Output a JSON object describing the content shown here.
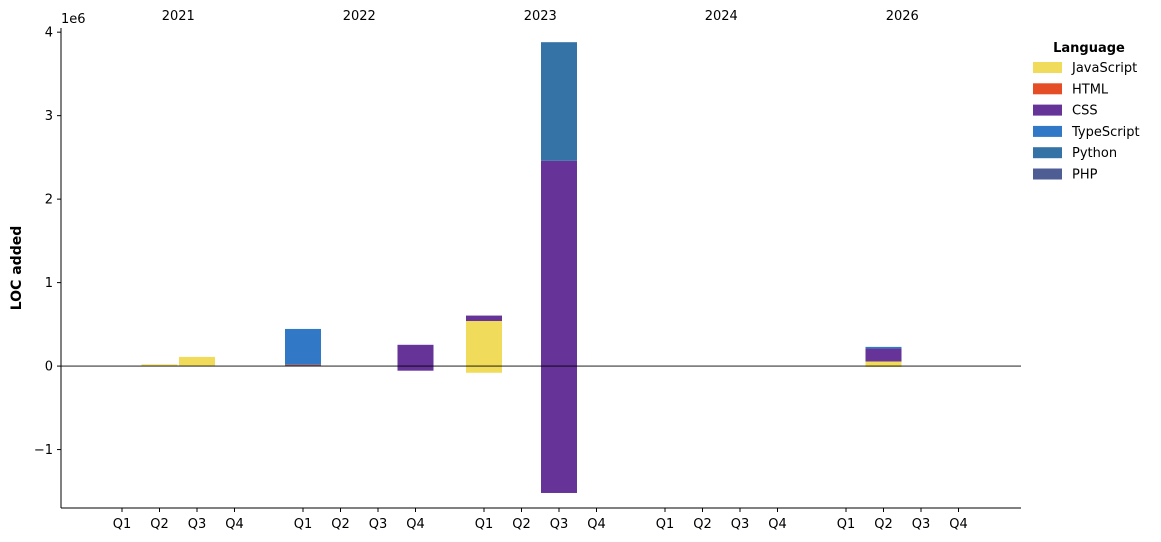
{
  "chart_data": {
    "type": "bar",
    "stacked": true,
    "ylabel": "LOC added",
    "y_scale_label": "1e6",
    "y_scale": 1000000,
    "ylim": [
      -1700000,
      4050000
    ],
    "yticks": [
      -1000000,
      0,
      1000000,
      2000000,
      3000000,
      4000000
    ],
    "ytick_labels": [
      "−1",
      "0",
      "1",
      "2",
      "3",
      "4"
    ],
    "years": [
      "2021",
      "2022",
      "2023",
      "2024",
      "2026"
    ],
    "quarters": [
      "Q1",
      "Q2",
      "Q3",
      "Q4"
    ],
    "categories": [
      "2021 Q1",
      "2021 Q2",
      "2021 Q3",
      "2021 Q4",
      "2022 Q1",
      "2022 Q2",
      "2022 Q3",
      "2022 Q4",
      "2023 Q1",
      "2023 Q2",
      "2023 Q3",
      "2023 Q4",
      "2024 Q1",
      "2024 Q2",
      "2024 Q3",
      "2024 Q4",
      "2026 Q1",
      "2026 Q2",
      "2026 Q3",
      "2026 Q4"
    ],
    "legend": {
      "title": "Language",
      "placement": "upper-right-outside"
    },
    "grid": false,
    "zero_line": true,
    "series": [
      {
        "name": "JavaScript",
        "color": "#f0dc5a",
        "values": [
          0,
          20000,
          110000,
          0,
          0,
          0,
          0,
          0,
          540000,
          0,
          0,
          0,
          0,
          0,
          0,
          0,
          0,
          55000,
          0,
          0
        ],
        "negatives": [
          0,
          0,
          0,
          0,
          0,
          0,
          0,
          0,
          -80000,
          0,
          0,
          0,
          0,
          0,
          0,
          0,
          0,
          -10000,
          0,
          0
        ]
      },
      {
        "name": "HTML",
        "color": "#e44d26",
        "values": [
          0,
          0,
          0,
          0,
          15000,
          0,
          0,
          0,
          0,
          0,
          0,
          0,
          0,
          0,
          0,
          0,
          0,
          0,
          0,
          0
        ],
        "negatives": [
          0,
          0,
          0,
          0,
          0,
          0,
          0,
          0,
          0,
          0,
          0,
          0,
          0,
          0,
          0,
          0,
          0,
          0,
          0,
          0
        ]
      },
      {
        "name": "CSS",
        "color": "#663399",
        "values": [
          0,
          0,
          0,
          0,
          0,
          0,
          0,
          255000,
          65000,
          0,
          2460000,
          0,
          0,
          0,
          0,
          0,
          0,
          155000,
          0,
          0
        ],
        "negatives": [
          0,
          0,
          0,
          0,
          0,
          0,
          0,
          -55000,
          0,
          0,
          -1520000,
          0,
          0,
          0,
          0,
          0,
          0,
          0,
          0,
          0
        ]
      },
      {
        "name": "TypeScript",
        "color": "#3178c6",
        "values": [
          0,
          0,
          0,
          0,
          430000,
          0,
          0,
          0,
          0,
          0,
          0,
          0,
          0,
          0,
          0,
          0,
          0,
          20000,
          0,
          0
        ],
        "negatives": [
          0,
          0,
          0,
          0,
          0,
          0,
          0,
          0,
          0,
          0,
          0,
          0,
          0,
          0,
          0,
          0,
          0,
          0,
          0,
          0
        ]
      },
      {
        "name": "Python",
        "color": "#3572a5",
        "values": [
          0,
          0,
          0,
          0,
          0,
          0,
          0,
          0,
          0,
          0,
          1420000,
          0,
          0,
          0,
          0,
          0,
          0,
          0,
          0,
          0
        ],
        "negatives": [
          0,
          0,
          0,
          0,
          0,
          0,
          0,
          0,
          0,
          0,
          0,
          0,
          0,
          0,
          0,
          0,
          0,
          0,
          0,
          0
        ]
      },
      {
        "name": "PHP",
        "color": "#4f5d95",
        "values": [
          0,
          0,
          0,
          0,
          0,
          0,
          0,
          0,
          0,
          0,
          0,
          0,
          0,
          0,
          0,
          0,
          0,
          0,
          0,
          0
        ],
        "negatives": [
          0,
          0,
          0,
          0,
          0,
          0,
          0,
          0,
          0,
          0,
          0,
          0,
          0,
          0,
          0,
          0,
          0,
          0,
          0,
          0
        ]
      }
    ]
  }
}
